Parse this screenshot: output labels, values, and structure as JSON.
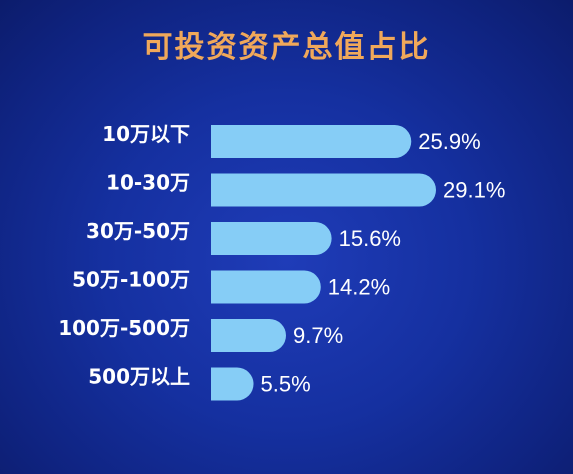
{
  "chart_data": {
    "type": "bar",
    "title": "可投资资产总值占比",
    "categories": [
      "10万以下",
      "10-30万",
      "30万-50万",
      "50万-100万",
      "100万-500万",
      "500万以上"
    ],
    "values": [
      25.9,
      29.1,
      15.6,
      14.2,
      9.7,
      5.5
    ],
    "value_labels": [
      "25.9%",
      "29.1%",
      "15.6%",
      "14.2%",
      "9.7%",
      "5.5%"
    ],
    "unit": "%",
    "orientation": "horizontal",
    "bar_color": "#86cdf6",
    "title_color": "#f0a85a",
    "background_color": "#1530a0",
    "grid": false,
    "legend": "none"
  }
}
